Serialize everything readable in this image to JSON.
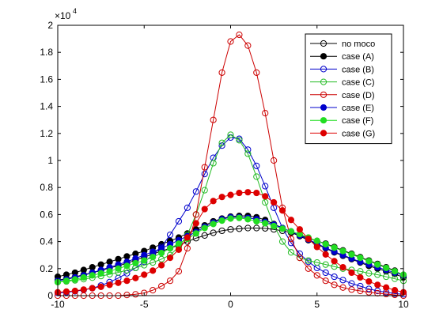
{
  "chart_data": {
    "type": "line",
    "title": "",
    "xlabel": "",
    "ylabel": "",
    "xlim": [
      -10,
      10
    ],
    "ylim": [
      0,
      20000
    ],
    "x_ticks": [
      "-10",
      "-5",
      "0",
      "5",
      "10"
    ],
    "y_ticks": [
      "0",
      "0.2",
      "0.4",
      "0.6",
      "0.8",
      "1",
      "1.2",
      "1.4",
      "1.6",
      "1.8",
      "2"
    ],
    "y_multiplier": {
      "base": "×10",
      "exponent": "4"
    },
    "grid": false,
    "legend_position": "top-right",
    "x": [
      -10,
      -9.5,
      -9,
      -8.5,
      -8,
      -7.5,
      -7,
      -6.5,
      -6,
      -5.5,
      -5,
      -4.5,
      -4,
      -3.5,
      -3,
      -2.5,
      -2,
      -1.5,
      -1,
      -0.5,
      0,
      0.5,
      1,
      1.5,
      2,
      2.5,
      3,
      3.5,
      4,
      4.5,
      5,
      5.5,
      6,
      6.5,
      7,
      7.5,
      8,
      8.5,
      9,
      9.5,
      10
    ],
    "series": [
      {
        "name": "no moco",
        "color": "#000000",
        "filled": false,
        "values": [
          1150,
          1250,
          1380,
          1550,
          1700,
          1850,
          2050,
          2200,
          2400,
          2620,
          2850,
          3070,
          3300,
          3500,
          3750,
          4000,
          4250,
          4450,
          4650,
          4800,
          4900,
          4950,
          5000,
          5000,
          4980,
          4900,
          4800,
          4650,
          4450,
          4250,
          4050,
          3850,
          3600,
          3350,
          3100,
          2850,
          2600,
          2350,
          2100,
          1850,
          1500
        ]
      },
      {
        "name": "case (A)",
        "color": "#000000",
        "filled": true,
        "values": [
          1400,
          1550,
          1700,
          1900,
          2100,
          2300,
          2500,
          2700,
          2900,
          3100,
          3300,
          3550,
          3800,
          4050,
          4300,
          4600,
          4900,
          5200,
          5500,
          5700,
          5850,
          5900,
          5900,
          5800,
          5600,
          5300,
          5000,
          4700,
          4400,
          4100,
          3800,
          3500,
          3200,
          2950,
          2700,
          2450,
          2200,
          2000,
          1800,
          1600,
          1350
        ]
      },
      {
        "name": "case (B)",
        "color": "#0000cc",
        "filled": false,
        "values": [
          200,
          250,
          320,
          420,
          550,
          750,
          1000,
          1300,
          1650,
          2050,
          2500,
          3000,
          3600,
          4500,
          5500,
          6500,
          7700,
          9000,
          10200,
          11100,
          11700,
          11600,
          10800,
          9600,
          8100,
          6500,
          5000,
          3900,
          3100,
          2500,
          2050,
          1700,
          1400,
          1150,
          900,
          700,
          500,
          350,
          250,
          150,
          100
        ]
      },
      {
        "name": "case (C)",
        "color": "#22bb22",
        "filled": false,
        "values": [
          1000,
          1050,
          1130,
          1220,
          1330,
          1450,
          1580,
          1720,
          1880,
          2050,
          2250,
          2450,
          2700,
          3000,
          3600,
          4500,
          6000,
          7800,
          9800,
          11300,
          11900,
          11500,
          10500,
          8800,
          6900,
          5200,
          4000,
          3200,
          2800,
          2600,
          2450,
          2300,
          2150,
          2000,
          1900,
          1800,
          1650,
          1550,
          1400,
          1250,
          1100
        ]
      },
      {
        "name": "case (D)",
        "color": "#cc0000",
        "filled": false,
        "values": [
          0,
          0,
          0,
          0,
          0,
          0,
          0,
          0,
          50,
          100,
          200,
          400,
          700,
          1100,
          1800,
          3500,
          6000,
          9500,
          13000,
          16500,
          18800,
          19300,
          18500,
          16500,
          13500,
          10000,
          6500,
          4200,
          2800,
          2000,
          1500,
          1100,
          800,
          600,
          450,
          350,
          250,
          180,
          120,
          60,
          0
        ]
      },
      {
        "name": "case (E)",
        "color": "#0000cc",
        "filled": true,
        "values": [
          1100,
          1200,
          1350,
          1500,
          1700,
          1900,
          2100,
          2300,
          2500,
          2750,
          3000,
          3250,
          3500,
          3800,
          4100,
          4400,
          4700,
          5100,
          5400,
          5650,
          5800,
          5800,
          5750,
          5650,
          5450,
          5250,
          5000,
          4750,
          4450,
          4150,
          3850,
          3550,
          3250,
          3000,
          2750,
          2500,
          2300,
          2100,
          1900,
          1700,
          1500
        ]
      },
      {
        "name": "case (F)",
        "color": "#22dd22",
        "filled": true,
        "values": [
          1000,
          1100,
          1200,
          1350,
          1500,
          1650,
          1800,
          2000,
          2200,
          2400,
          2600,
          2850,
          3150,
          3500,
          3850,
          4200,
          4600,
          5000,
          5300,
          5550,
          5700,
          5750,
          5650,
          5500,
          5350,
          5150,
          4950,
          4750,
          4550,
          4300,
          4050,
          3800,
          3550,
          3300,
          3050,
          2800,
          2550,
          2300,
          2050,
          1800,
          1550
        ]
      },
      {
        "name": "case (G)",
        "color": "#dd0000",
        "filled": true,
        "values": [
          250,
          300,
          350,
          450,
          550,
          650,
          800,
          950,
          1100,
          1300,
          1550,
          1850,
          2250,
          2800,
          3400,
          4300,
          5350,
          6400,
          7000,
          7300,
          7450,
          7600,
          7650,
          7600,
          7350,
          6900,
          6300,
          5600,
          4900,
          4200,
          3600,
          3050,
          2550,
          2100,
          1700,
          1350,
          1050,
          800,
          600,
          400,
          250
        ]
      }
    ]
  }
}
